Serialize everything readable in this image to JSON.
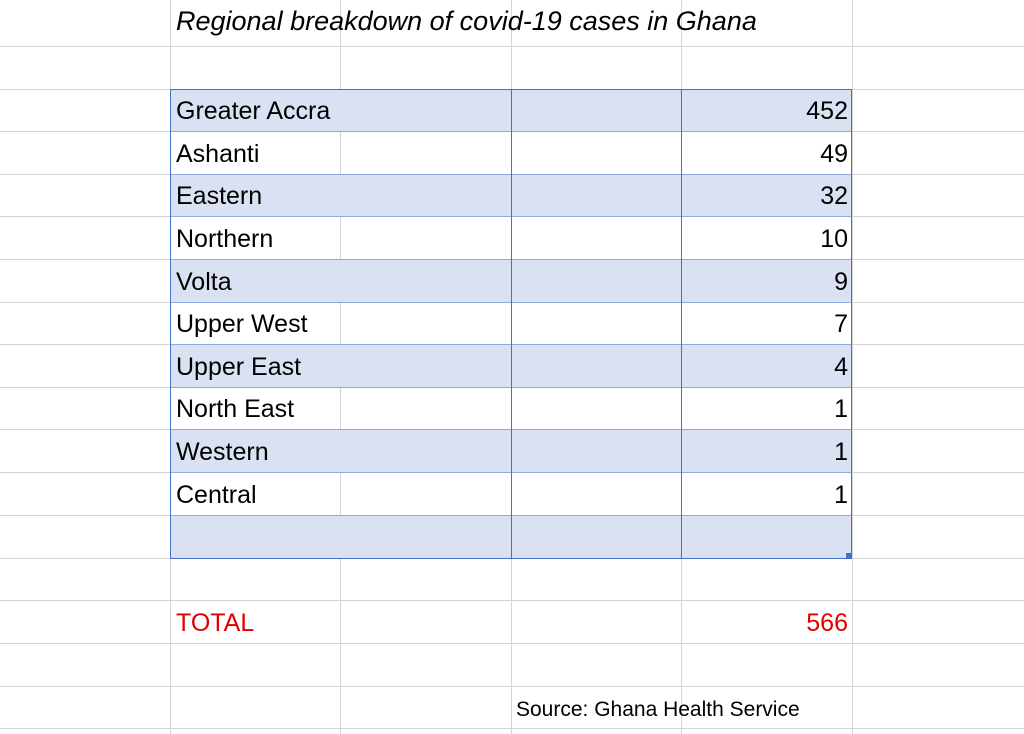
{
  "sheet": {
    "title": "Regional breakdown of covid-19 cases in Ghana",
    "rows": [
      {
        "region": "Greater Accra",
        "cases": "452"
      },
      {
        "region": "Ashanti",
        "cases": "49"
      },
      {
        "region": "Eastern",
        "cases": "32"
      },
      {
        "region": "Northern",
        "cases": "10"
      },
      {
        "region": "Volta",
        "cases": "9"
      },
      {
        "region": "Upper West",
        "cases": "7"
      },
      {
        "region": "Upper East",
        "cases": "4"
      },
      {
        "region": "North East",
        "cases": "1"
      },
      {
        "region": "Western",
        "cases": "1"
      },
      {
        "region": "Central",
        "cases": "1"
      }
    ],
    "total": {
      "label": "TOTAL",
      "value": "566"
    },
    "source": "Source: Ghana Health Service"
  },
  "colors": {
    "band": "#d9e1f2",
    "table_border": "#4472c4",
    "total_text": "#e00000",
    "gridline": "#d4d4d4"
  }
}
